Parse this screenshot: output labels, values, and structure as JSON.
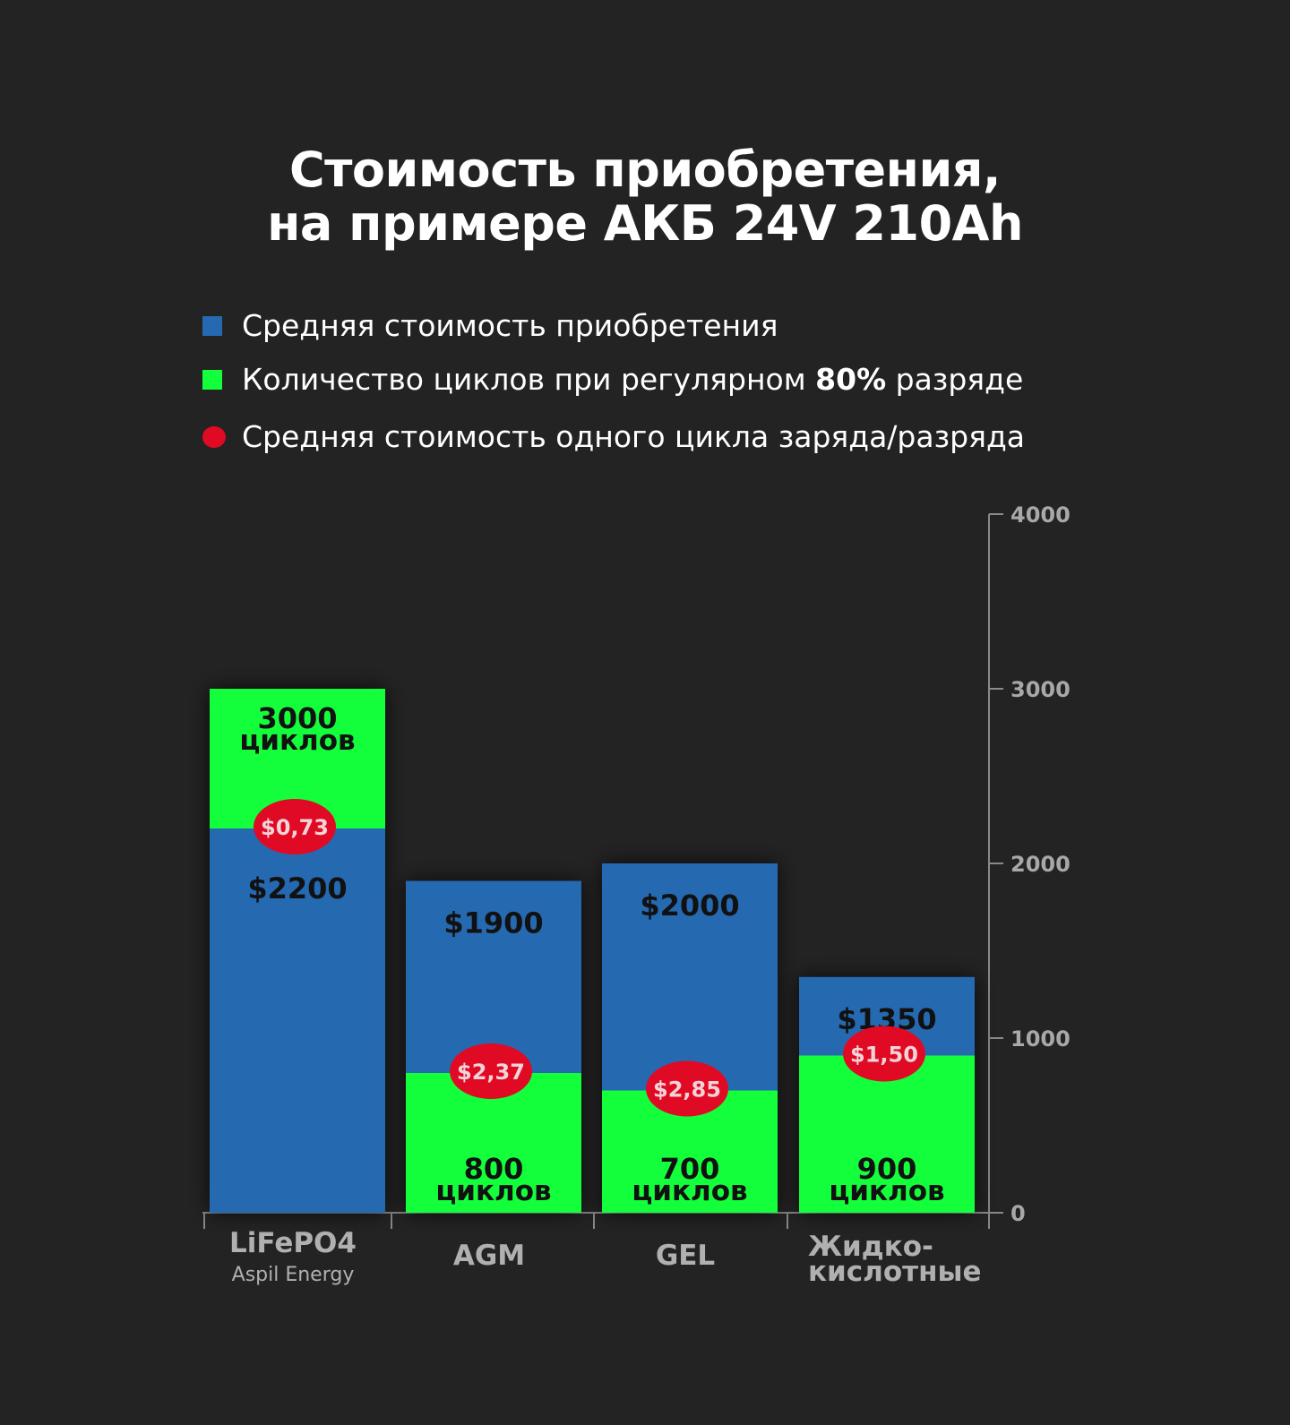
{
  "title": {
    "line1": "Стоимость приобретения,",
    "line2": "на примере АКБ 24V 210Ah"
  },
  "legend": {
    "items": [
      {
        "name": "legend-price",
        "text_before": "Средняя стоимость приобретения",
        "bold": "",
        "text_after": "",
        "color": "#2569b1",
        "shape": "square"
      },
      {
        "name": "legend-cycles",
        "text_before": "Количество циклов при регулярном ",
        "bold": "80%",
        "text_after": " разряде",
        "color": "#14ff3b",
        "shape": "square"
      },
      {
        "name": "legend-cycle-cost",
        "text_before": "Средняя стоимость одного цикла заряда/разряда",
        "bold": "",
        "text_after": "",
        "color": "#e10a24",
        "shape": "circle"
      }
    ]
  },
  "colors": {
    "background": "#232323",
    "price": "#2569b1",
    "cycles": "#14ff3b",
    "cycle_cost": "#e10a24",
    "axis": "#8a8a8a",
    "tick_text": "#a8a8a8",
    "category_text": "#b0b0b0"
  },
  "chart_data": {
    "type": "bar",
    "title": "Стоимость приобретения, на примере АКБ 24V 210Ah",
    "xlabel": "",
    "ylabel": "",
    "ylim": [
      0,
      4000
    ],
    "yticks": [
      0,
      1000,
      2000,
      3000,
      4000
    ],
    "y_axis_position": "right",
    "categories": [
      {
        "label": "LiFePO4",
        "sublabel": "Aspil Energy"
      },
      {
        "label": "AGM",
        "sublabel": ""
      },
      {
        "label": "GEL",
        "sublabel": ""
      },
      {
        "label": "Жидко-\nкислотные",
        "sublabel": ""
      }
    ],
    "series": [
      {
        "name": "Средняя стоимость приобретения",
        "values": [
          2200,
          1900,
          2000,
          1350
        ],
        "labels": [
          "$2200",
          "$1900",
          "$2000",
          "$1350"
        ]
      },
      {
        "name": "Количество циклов при регулярном 80% разряде",
        "values": [
          3000,
          800,
          700,
          900
        ],
        "labels": [
          "3000\nциклов",
          "800\nциклов",
          "700\nциклов",
          "900\nциклов"
        ]
      },
      {
        "name": "Средняя стоимость одного цикла заряда/разряда",
        "values": [
          0.73,
          2.37,
          2.85,
          1.5
        ],
        "labels": [
          "$0,73",
          "$2,37",
          "$2,85",
          "$1,50"
        ]
      }
    ]
  }
}
